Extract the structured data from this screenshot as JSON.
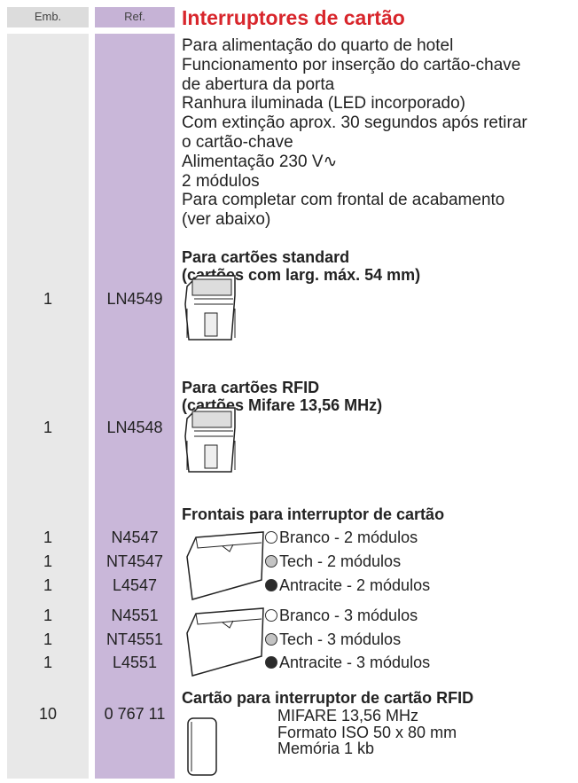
{
  "header": {
    "emb": "Emb.",
    "ref": "Ref.",
    "title": "Interruptores de cartão"
  },
  "description": [
    "Para alimentação do quarto de hotel",
    "Funcionamento por inserção do cartão-chave",
    "de abertura da porta",
    "Ranhura iluminada (LED incorporado)",
    "Com extinção aprox. 30 segundos após retirar",
    "o cartão-chave",
    "Alimentação 230 V∿",
    "2 módulos",
    "Para completar com frontal de acabamento",
    "(ver abaixo)"
  ],
  "sections": [
    {
      "heading": [
        "Para cartões standard",
        "(cartões com larg. máx. 54 mm)"
      ],
      "items": [
        {
          "emb": "1",
          "ref": "LN4549"
        }
      ]
    },
    {
      "heading": [
        "Para cartões RFID",
        "(cartões Mifare 13,56 MHz)"
      ],
      "items": [
        {
          "emb": "1",
          "ref": "LN4548"
        }
      ]
    },
    {
      "heading": [
        "Frontais para interruptor de cartão"
      ],
      "items": [
        {
          "emb": "1",
          "ref": "N4547",
          "label": "Branco - 2 módulos"
        },
        {
          "emb": "1",
          "ref": "NT4547",
          "label": "Tech - 2 módulos"
        },
        {
          "emb": "1",
          "ref": "L4547",
          "label": "Antracite - 2 módulos"
        },
        {
          "emb": "1",
          "ref": "N4551",
          "label": "Branco - 3 módulos"
        },
        {
          "emb": "1",
          "ref": "NT4551",
          "label": "Tech - 3 módulos"
        },
        {
          "emb": "1",
          "ref": "L4551",
          "label": "Antracite - 3 módulos"
        }
      ]
    },
    {
      "heading": [
        "Cartão para interruptor de cartão RFID"
      ],
      "items": [
        {
          "emb": "10",
          "ref": "0 767 11"
        }
      ],
      "details": [
        "MIFARE 13,56 MHz",
        "Formato ISO 50 x 80 mm",
        "Memória 1 kb"
      ]
    }
  ]
}
